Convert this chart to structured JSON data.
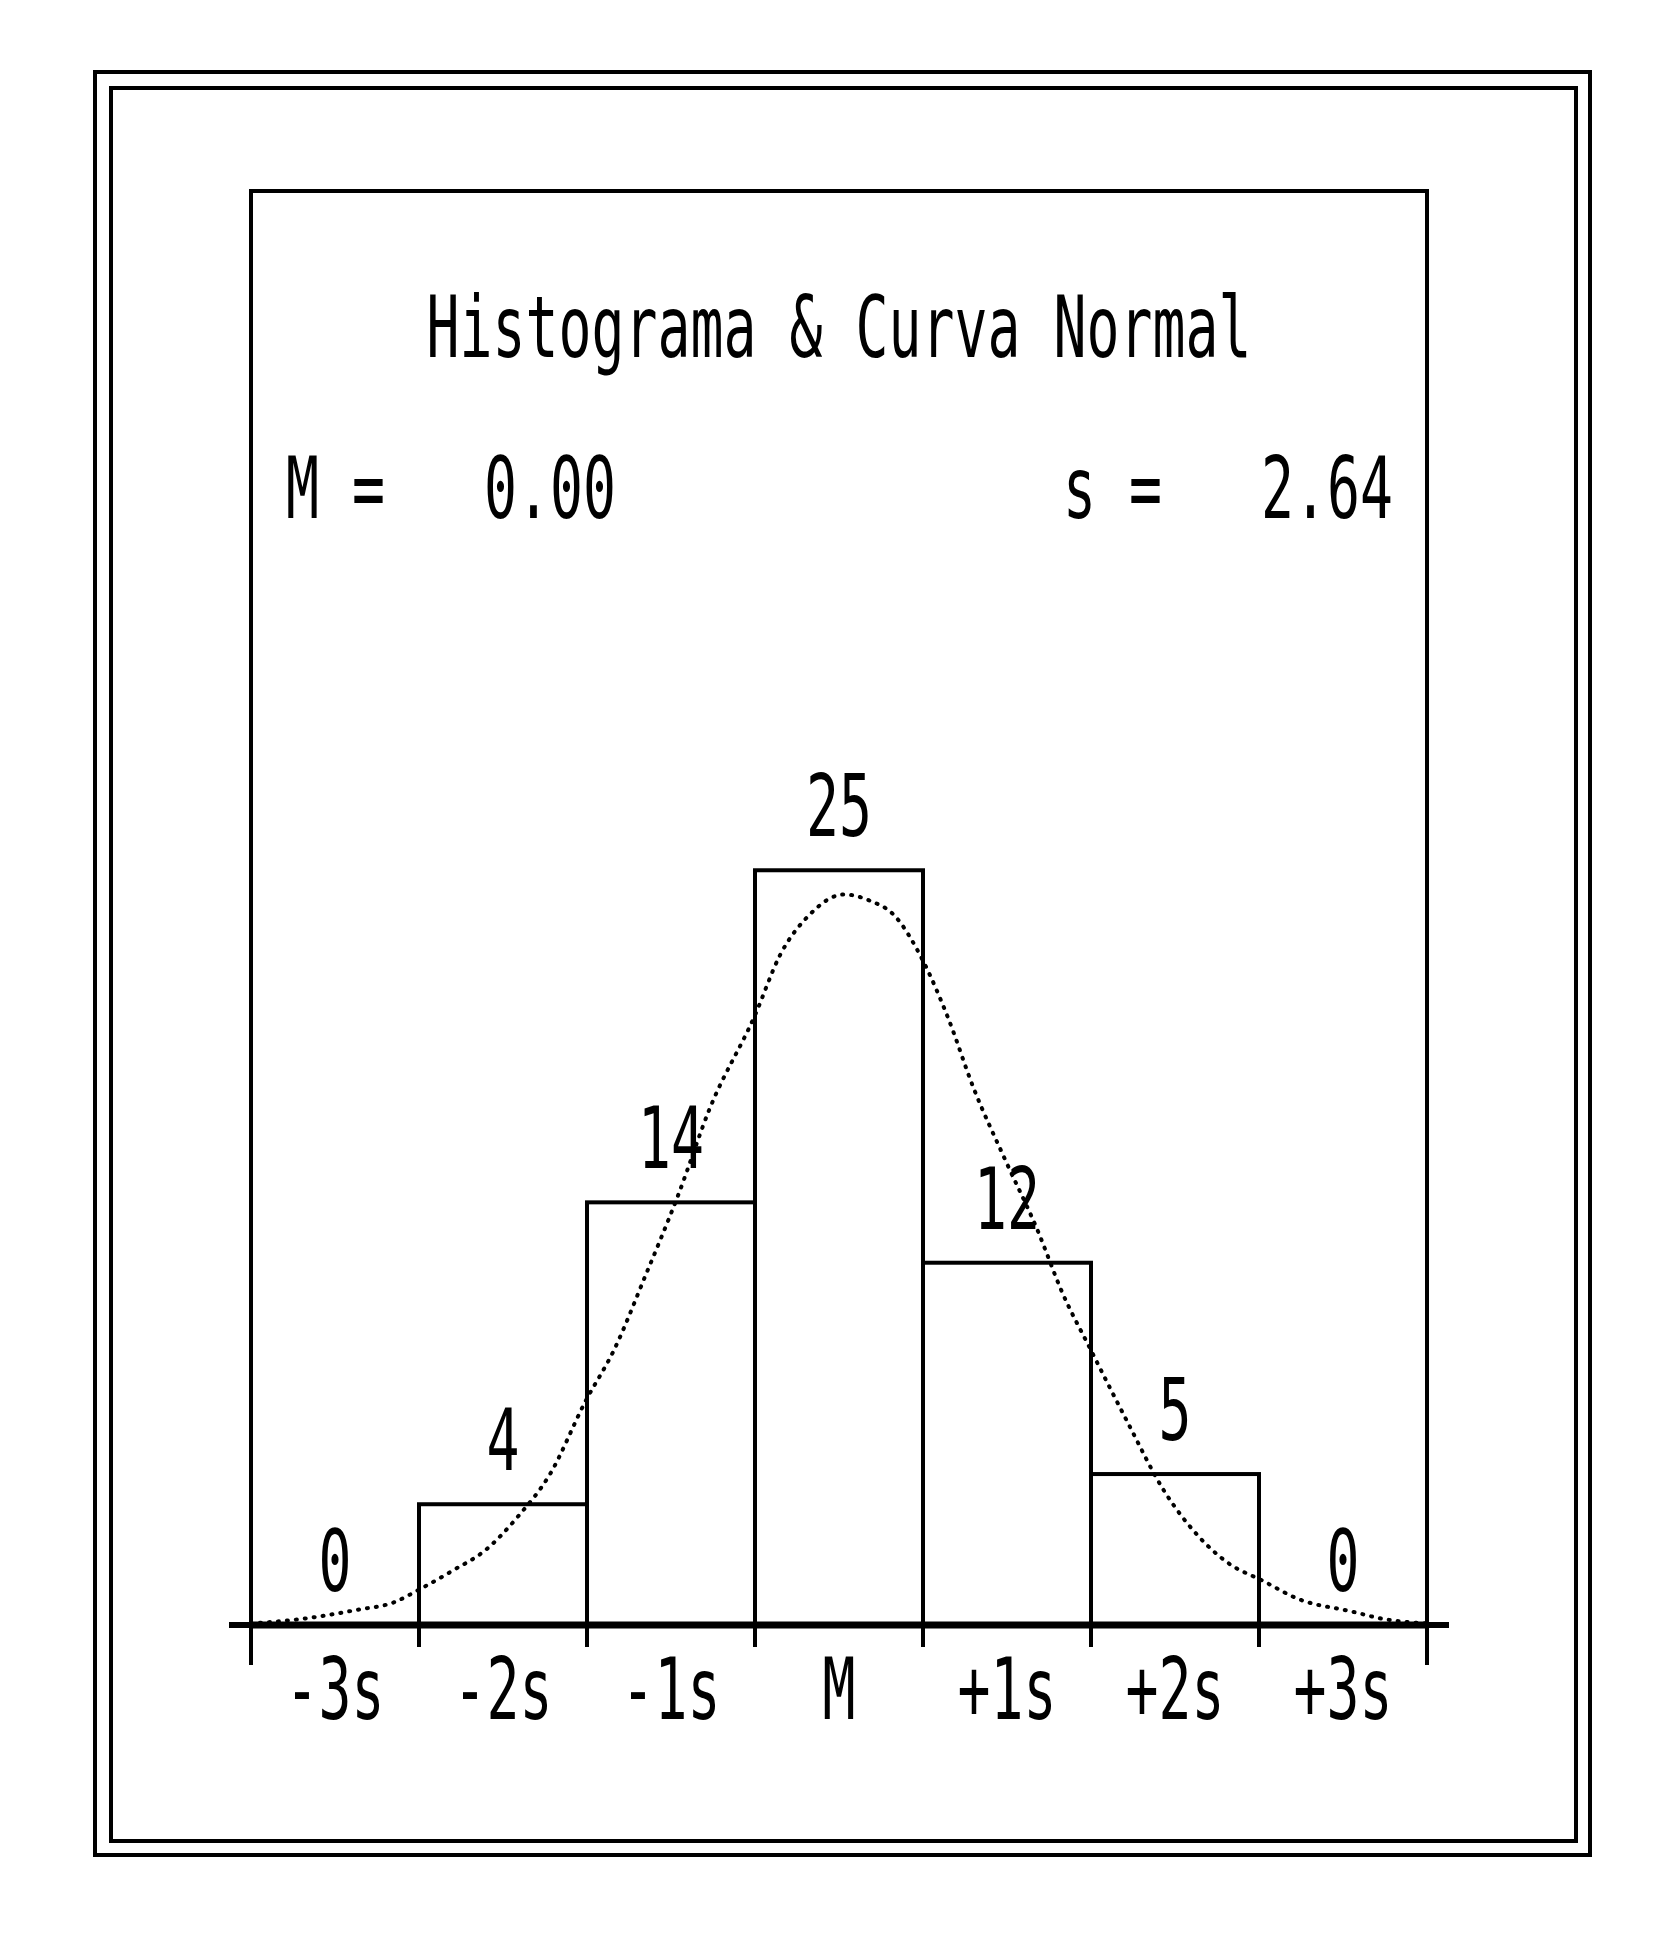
{
  "chart_data": {
    "type": "histogram",
    "title": "Histograma & Curva Normal",
    "annotations": [
      "M =   0.00",
      "s =   2.64"
    ],
    "bins": [
      -3.5,
      -2.5,
      -1.5,
      -0.5,
      0.5,
      1.5,
      2.5,
      3.5
    ],
    "series": [
      {
        "color": "#ffffff",
        "values": [
          0,
          4,
          14,
          25,
          12,
          5,
          0
        ],
        "value_labels": [
          "0",
          "4",
          "14",
          "25",
          "12",
          "5",
          "0"
        ]
      },
      {
        "type": "line",
        "color": "#000000",
        "line_style": "dotted",
        "x": [
          -3.5,
          -3.2,
          -2.87,
          -2.65,
          -2.49,
          -2.3,
          -2.1,
          -1.91,
          -1.72,
          -1.51,
          -1.34,
          -1.15,
          -0.96,
          -0.77,
          -0.5,
          -0.35,
          -0.18,
          0.03,
          0.18,
          0.33,
          0.5,
          0.65,
          0.8,
          0.99,
          1.18,
          1.33,
          1.5,
          1.71,
          1.94,
          2.13,
          2.33,
          2.51,
          2.74,
          3.05,
          3.24,
          3.5
        ],
        "values": [
          0.05,
          0.2,
          0.5,
          0.75,
          1.2,
          1.8,
          2.5,
          3.6,
          5.0,
          7.4,
          9.1,
          11.6,
          14.2,
          17.1,
          20.2,
          22.2,
          23.5,
          24.2,
          24.0,
          23.5,
          22.0,
          20.1,
          17.8,
          15.4,
          13.1,
          11.0,
          9.1,
          6.8,
          4.4,
          3.0,
          2.0,
          1.5,
          0.85,
          0.45,
          0.2,
          0.05
        ]
      }
    ],
    "xlim": [
      -3.5,
      3.5
    ],
    "xticks": [
      {
        "value": -3,
        "label": "-3s"
      },
      {
        "value": -2,
        "label": "-2s"
      },
      {
        "value": -1,
        "label": "-1s"
      },
      {
        "value": 0,
        "label": "M"
      },
      {
        "value": 1,
        "label": "+1s"
      },
      {
        "value": 2,
        "label": "+2s"
      },
      {
        "value": 3,
        "label": "+3s"
      }
    ],
    "ylim": [
      0,
      47.5
    ],
    "yticks": [
      {
        "value": 0,
        "label": null
      }
    ],
    "tick_labels": "x"
  }
}
